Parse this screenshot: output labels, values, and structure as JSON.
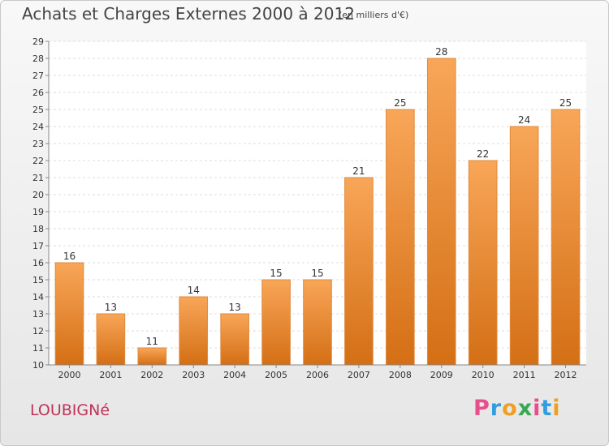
{
  "title": "Achats et Charges Externes 2000 à 2012",
  "subtitle": "(en milliers d'€)",
  "commune": "LOUBIGNé",
  "logo": {
    "letters": [
      "P",
      "r",
      "o",
      "x",
      "i",
      "t",
      "i"
    ]
  },
  "colors": {
    "bar_top": "#f8a658",
    "bar_bottom": "#d46f15",
    "commune": "#c0335a",
    "logo": [
      "#e84e8a",
      "#2f9ee0",
      "#f0a020",
      "#38a850",
      "#e84e8a",
      "#2f9ee0",
      "#f0a020"
    ]
  },
  "chart_data": {
    "type": "bar",
    "categories": [
      "2000",
      "2001",
      "2002",
      "2003",
      "2004",
      "2005",
      "2006",
      "2007",
      "2008",
      "2009",
      "2010",
      "2011",
      "2012"
    ],
    "values": [
      16,
      13,
      11,
      14,
      13,
      15,
      15,
      21,
      25,
      28,
      22,
      24,
      25
    ],
    "ylim": [
      10,
      29
    ],
    "yticks": [
      10,
      11,
      12,
      13,
      14,
      15,
      16,
      17,
      18,
      19,
      20,
      21,
      22,
      23,
      24,
      25,
      26,
      27,
      28,
      29
    ],
    "grid": true
  }
}
